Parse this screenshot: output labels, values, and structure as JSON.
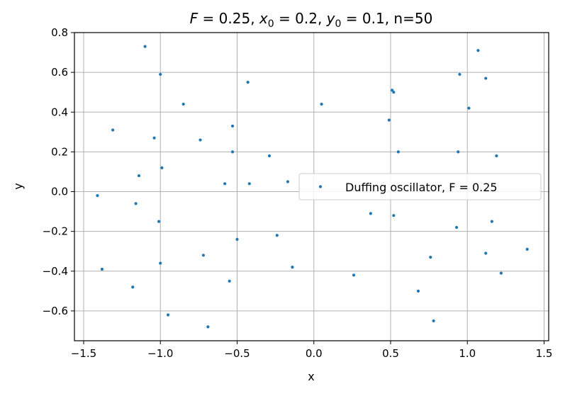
{
  "chart_data": {
    "type": "scatter",
    "title": "F = 0.25, x₀ = 0.2, y₀ = 0.1, n=50",
    "title_parts": {
      "F_sym": "F",
      "F_val": " = 0.25, ",
      "x_sym": "x",
      "x_sub": "0",
      "x_val": " = 0.2, ",
      "y_sym": "y",
      "y_sub": "0",
      "y_val": " = 0.1, n=50"
    },
    "xlabel": "x",
    "ylabel": "y",
    "xlim": [
      -1.56,
      1.53
    ],
    "ylim": [
      -0.75,
      0.8
    ],
    "xticks": [
      -1.5,
      -1.0,
      -0.5,
      0.0,
      0.5,
      1.0,
      1.5
    ],
    "xtick_labels": [
      "−1.5",
      "−1.0",
      "−0.5",
      "0.0",
      "0.5",
      "1.0",
      "1.5"
    ],
    "yticks": [
      -0.6,
      -0.4,
      -0.2,
      0.0,
      0.2,
      0.4,
      0.6,
      0.8
    ],
    "ytick_labels": [
      "−0.6",
      "−0.4",
      "−0.2",
      "0.0",
      "0.2",
      "0.4",
      "0.6",
      "0.8"
    ],
    "grid": true,
    "legend": {
      "label": "Duffing oscillator, F = 0.25",
      "location": "center-right"
    },
    "marker_color": "#1f77b4",
    "series": [
      {
        "name": "Duffing oscillator, F = 0.25",
        "points": [
          [
            -1.1,
            0.73
          ],
          [
            -1.0,
            0.59
          ],
          [
            -0.85,
            0.44
          ],
          [
            -0.43,
            0.55
          ],
          [
            -1.31,
            0.31
          ],
          [
            -1.04,
            0.27
          ],
          [
            -0.74,
            0.26
          ],
          [
            -0.53,
            0.33
          ],
          [
            -0.53,
            0.2
          ],
          [
            -0.29,
            0.18
          ],
          [
            -0.99,
            0.12
          ],
          [
            -1.14,
            0.08
          ],
          [
            -0.58,
            0.04
          ],
          [
            -0.42,
            0.04
          ],
          [
            -0.17,
            0.05
          ],
          [
            -1.41,
            -0.02
          ],
          [
            -1.16,
            -0.06
          ],
          [
            -1.01,
            -0.15
          ],
          [
            -0.5,
            -0.24
          ],
          [
            -0.24,
            -0.22
          ],
          [
            -0.72,
            -0.32
          ],
          [
            -1.0,
            -0.36
          ],
          [
            -1.38,
            -0.39
          ],
          [
            -0.14,
            -0.38
          ],
          [
            -1.18,
            -0.48
          ],
          [
            -0.55,
            -0.45
          ],
          [
            -0.95,
            -0.62
          ],
          [
            -0.69,
            -0.68
          ],
          [
            0.05,
            0.44
          ],
          [
            0.49,
            0.36
          ],
          [
            0.51,
            0.51
          ],
          [
            0.52,
            0.5
          ],
          [
            0.55,
            0.2
          ],
          [
            0.37,
            -0.11
          ],
          [
            0.52,
            -0.12
          ],
          [
            0.26,
            -0.42
          ],
          [
            0.68,
            -0.5
          ],
          [
            0.76,
            -0.33
          ],
          [
            0.78,
            -0.65
          ],
          [
            0.93,
            -0.18
          ],
          [
            0.94,
            0.2
          ],
          [
            0.95,
            0.59
          ],
          [
            1.01,
            0.42
          ],
          [
            1.07,
            0.71
          ],
          [
            1.12,
            0.57
          ],
          [
            1.19,
            0.18
          ],
          [
            1.16,
            -0.15
          ],
          [
            1.12,
            -0.31
          ],
          [
            1.22,
            -0.41
          ],
          [
            1.39,
            -0.29
          ]
        ]
      }
    ]
  }
}
